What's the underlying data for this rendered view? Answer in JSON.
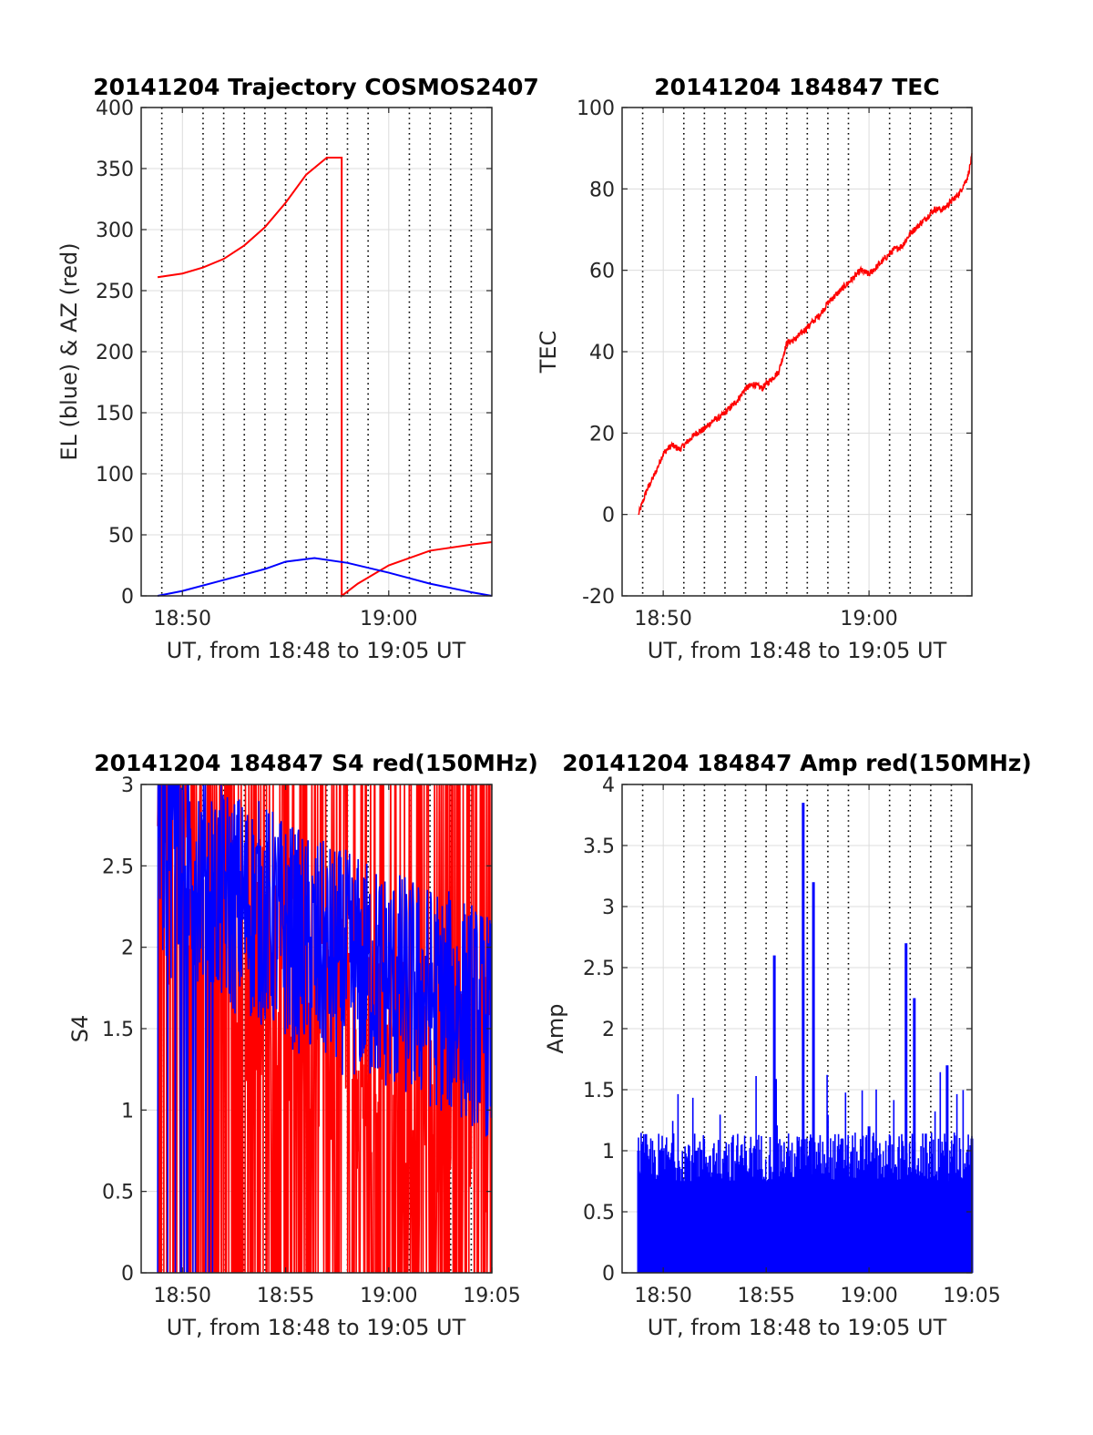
{
  "charts": [
    {
      "id": "trajectory",
      "title": "20141204 Trajectory COSMOS2407",
      "xlabel": "UT, from 18:48 to 19:05 UT",
      "ylabel": "EL (blue) & AZ (red)",
      "xlim": [
        18.8,
        19.0833
      ],
      "ylim": [
        0,
        400
      ],
      "yticks": [
        "0",
        "50",
        "100",
        "150",
        "200",
        "250",
        "300",
        "350",
        "400"
      ],
      "xticks": [
        {
          "v": 18.8333,
          "label": "18:50"
        },
        {
          "v": 19.0,
          "label": "19:00"
        }
      ],
      "colors": {
        "az": "#ff0000",
        "el": "#0000ff"
      }
    },
    {
      "id": "tec",
      "title": "20141204 184847 TEC",
      "xlabel": "UT, from 18:48 to 19:05 UT",
      "ylabel": "TEC",
      "xlim": [
        18.8,
        19.0833
      ],
      "ylim": [
        -20,
        100
      ],
      "yticks": [
        "-20",
        "0",
        "20",
        "40",
        "60",
        "80",
        "100"
      ],
      "xticks": [
        {
          "v": 18.8333,
          "label": "18:50"
        },
        {
          "v": 19.0,
          "label": "19:00"
        }
      ],
      "colors": {
        "tec": "#ff0000"
      }
    },
    {
      "id": "s4",
      "title": "20141204 184847 S4 red(150MHz)",
      "xlabel": "UT, from 18:48 to 19:05 UT",
      "ylabel": "S4",
      "xlim": [
        18.8,
        19.0833
      ],
      "ylim": [
        0,
        3
      ],
      "yticks": [
        "0",
        "0.5",
        "1",
        "1.5",
        "2",
        "2.5",
        "3"
      ],
      "xticks": [
        {
          "v": 18.8333,
          "label": "18:50"
        },
        {
          "v": 18.9167,
          "label": "18:55"
        },
        {
          "v": 19.0,
          "label": "19:00"
        },
        {
          "v": 19.0833,
          "label": "19:05"
        }
      ],
      "colors": {
        "red": "#ff0000",
        "blue": "#0000ff"
      }
    },
    {
      "id": "amp",
      "title": "20141204 184847 Amp red(150MHz)",
      "xlabel": "UT, from 18:48 to 19:05 UT",
      "ylabel": "Amp",
      "xlim": [
        18.8,
        19.0833
      ],
      "ylim": [
        0,
        4
      ],
      "yticks": [
        "0",
        "0.5",
        "1",
        "1.5",
        "2",
        "2.5",
        "3",
        "3.5",
        "4"
      ],
      "xticks": [
        {
          "v": 18.8333,
          "label": "18:50"
        },
        {
          "v": 18.9167,
          "label": "18:55"
        },
        {
          "v": 19.0,
          "label": "19:00"
        },
        {
          "v": 19.0833,
          "label": "19:05"
        }
      ],
      "colors": {
        "amp": "#0000ff"
      }
    }
  ],
  "chart_data": [
    {
      "type": "line",
      "title": "20141204 Trajectory COSMOS2407",
      "xlabel": "UT, from 18:48 to 19:05 UT",
      "ylabel": "EL (blue) & AZ (red)",
      "xlim": [
        18.8,
        19.0833
      ],
      "ylim": [
        0,
        400
      ],
      "grid": true,
      "series": [
        {
          "name": "AZ (red)",
          "x": [
            18.8133,
            18.8333,
            18.85,
            18.8667,
            18.8833,
            18.9,
            18.9167,
            18.9333,
            18.95,
            18.962,
            18.962,
            18.975,
            19.0,
            19.0333,
            19.0667,
            19.0833
          ],
          "y": [
            261,
            264,
            269,
            276,
            287,
            302,
            322,
            345,
            359,
            359,
            0,
            10,
            25,
            37,
            42,
            44
          ]
        },
        {
          "name": "EL (blue)",
          "x": [
            18.8133,
            18.8333,
            18.8667,
            18.9,
            18.9167,
            18.94,
            18.9667,
            19.0,
            19.0333,
            19.0667,
            19.0833
          ],
          "y": [
            0,
            4,
            13,
            22,
            28,
            31,
            27,
            19,
            10,
            3,
            0
          ]
        }
      ]
    },
    {
      "type": "line",
      "title": "20141204 184847 TEC",
      "xlabel": "UT, from 18:48 to 19:05 UT",
      "ylabel": "TEC",
      "xlim": [
        18.8,
        19.0833
      ],
      "ylim": [
        -20,
        100
      ],
      "grid": true,
      "series": [
        {
          "name": "TEC",
          "x": [
            18.8133,
            18.82,
            18.8267,
            18.8333,
            18.84,
            18.8467,
            18.8533,
            18.86,
            18.8667,
            18.8733,
            18.88,
            18.8867,
            18.8933,
            18.9,
            18.9067,
            18.9133,
            18.92,
            18.9267,
            18.9333,
            18.94,
            18.9467,
            18.9533,
            18.96,
            18.9667,
            18.9733,
            18.98,
            18.9867,
            18.9933,
            19.0,
            19.0067,
            19.0133,
            19.02,
            19.0267,
            19.0333,
            19.04,
            19.0467,
            19.0533,
            19.06,
            19.0667,
            19.0733,
            19.08,
            19.0833
          ],
          "y": [
            0,
            6,
            10,
            15,
            17,
            16,
            18,
            20,
            21,
            23,
            24,
            26,
            28,
            31,
            32,
            31,
            33,
            35,
            42,
            43,
            45,
            47,
            49,
            52,
            54,
            56,
            58,
            60,
            59,
            61,
            63,
            65,
            66,
            69,
            71,
            73,
            75,
            75,
            77,
            79,
            83,
            88
          ]
        }
      ]
    },
    {
      "type": "line",
      "title": "20141204 184847 S4 red(150MHz)",
      "xlabel": "UT, from 18:48 to 19:05 UT",
      "ylabel": "S4",
      "xlim": [
        18.8,
        19.0833
      ],
      "ylim": [
        0,
        3
      ],
      "grid": true,
      "series": [
        {
          "name": "red",
          "x": [
            18.8133,
            18.8333,
            18.8667,
            18.9,
            18.9333,
            18.9667,
            19.0,
            19.0333,
            19.0667,
            19.0833
          ],
          "y": [
            2.6,
            2.3,
            2.0,
            1.9,
            1.7,
            1.5,
            1.2,
            1.1,
            1.0,
            1.2
          ]
        },
        {
          "name": "blue",
          "x": [
            18.8133,
            18.8333,
            18.8667,
            18.9,
            18.9333,
            18.9667,
            19.0,
            19.0333,
            19.0667,
            19.0833
          ],
          "y": [
            2.4,
            2.6,
            2.3,
            2.2,
            2.0,
            1.9,
            1.8,
            1.7,
            1.6,
            1.5
          ]
        }
      ]
    },
    {
      "type": "bar",
      "title": "20141204 184847 Amp red(150MHz)",
      "xlabel": "UT, from 18:48 to 19:05 UT",
      "ylabel": "Amp",
      "xlim": [
        18.8,
        19.0833
      ],
      "ylim": [
        0,
        4
      ],
      "grid": true,
      "series": [
        {
          "name": "Amp",
          "x": [
            18.8133,
            18.8333,
            18.86,
            18.8833,
            18.9,
            18.9233,
            18.9467,
            18.955,
            18.9783,
            19.0,
            19.03,
            19.0367,
            19.0633,
            19.0833
          ],
          "y": [
            1.0,
            1.0,
            1.0,
            1.0,
            1.0,
            2.6,
            3.85,
            3.2,
            1.1,
            1.2,
            2.7,
            2.25,
            1.7,
            1.1
          ]
        }
      ]
    }
  ]
}
